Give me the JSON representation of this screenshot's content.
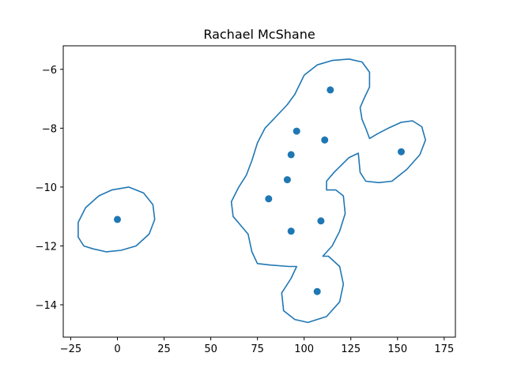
{
  "chart_data": {
    "type": "scatter",
    "title": "Rachael McShane",
    "xlabel": "",
    "ylabel": "",
    "xlim": [
      -29,
      181
    ],
    "ylim": [
      -15.1,
      -5.2
    ],
    "xticks": [
      -25,
      0,
      25,
      50,
      75,
      100,
      125,
      150,
      175
    ],
    "yticks": [
      -14,
      -12,
      -10,
      -8,
      -6
    ],
    "grid": false,
    "color": "#1f77b4",
    "points": [
      {
        "x": 0.0,
        "y": -11.1
      },
      {
        "x": 114.0,
        "y": -6.7
      },
      {
        "x": 96.0,
        "y": -8.1
      },
      {
        "x": 111.0,
        "y": -8.4
      },
      {
        "x": 93.0,
        "y": -8.9
      },
      {
        "x": 152.0,
        "y": -8.8
      },
      {
        "x": 91.0,
        "y": -9.75
      },
      {
        "x": 81.0,
        "y": -10.4
      },
      {
        "x": 109.0,
        "y": -11.15
      },
      {
        "x": 93.0,
        "y": -11.5
      },
      {
        "x": 107.0,
        "y": -13.55
      }
    ],
    "contours": [
      [
        [
          -21,
          -11.7
        ],
        [
          -21,
          -11.2
        ],
        [
          -17,
          -10.7
        ],
        [
          -10,
          -10.3
        ],
        [
          -3,
          -10.1
        ],
        [
          6,
          -10.0
        ],
        [
          14,
          -10.2
        ],
        [
          19,
          -10.6
        ],
        [
          20,
          -11.1
        ],
        [
          17,
          -11.6
        ],
        [
          10,
          -12.0
        ],
        [
          2,
          -12.15
        ],
        [
          -6,
          -12.2
        ],
        [
          -13,
          -12.1
        ],
        [
          -18,
          -12.0
        ],
        [
          -21,
          -11.7
        ]
      ],
      [
        [
          70,
          -11.6
        ],
        [
          72,
          -12.2
        ],
        [
          75,
          -12.6
        ],
        [
          82,
          -12.65
        ],
        [
          92,
          -12.7
        ],
        [
          96,
          -12.7
        ],
        [
          93,
          -13.1
        ],
        [
          88,
          -13.6
        ],
        [
          89,
          -14.2
        ],
        [
          95,
          -14.5
        ],
        [
          102,
          -14.6
        ],
        [
          112,
          -14.4
        ],
        [
          119,
          -13.9
        ],
        [
          121,
          -13.3
        ],
        [
          119,
          -12.7
        ],
        [
          113,
          -12.35
        ],
        [
          110,
          -12.35
        ],
        [
          115,
          -12.0
        ],
        [
          119,
          -11.5
        ],
        [
          122,
          -10.9
        ],
        [
          121,
          -10.3
        ],
        [
          117,
          -10.1
        ],
        [
          112,
          -10.1
        ],
        [
          112,
          -9.8
        ],
        [
          116,
          -9.5
        ],
        [
          124,
          -9.0
        ],
        [
          129,
          -8.85
        ],
        [
          130,
          -9.5
        ],
        [
          133,
          -9.8
        ],
        [
          140,
          -9.85
        ],
        [
          147,
          -9.8
        ],
        [
          155,
          -9.4
        ],
        [
          162,
          -8.9
        ],
        [
          165,
          -8.4
        ],
        [
          163,
          -7.95
        ],
        [
          158,
          -7.75
        ],
        [
          152,
          -7.8
        ],
        [
          145,
          -8.0
        ],
        [
          139,
          -8.2
        ],
        [
          135,
          -8.35
        ],
        [
          133,
          -8.0
        ],
        [
          131,
          -7.7
        ],
        [
          130,
          -7.3
        ],
        [
          132,
          -7.0
        ],
        [
          135,
          -6.6
        ],
        [
          135,
          -6.1
        ],
        [
          131,
          -5.75
        ],
        [
          124,
          -5.65
        ],
        [
          115,
          -5.7
        ],
        [
          107,
          -5.85
        ],
        [
          100,
          -6.2
        ],
        [
          95,
          -6.85
        ],
        [
          91,
          -7.2
        ],
        [
          85,
          -7.6
        ],
        [
          79,
          -8.0
        ],
        [
          75,
          -8.5
        ],
        [
          72,
          -9.1
        ],
        [
          69,
          -9.6
        ],
        [
          65,
          -10.0
        ],
        [
          61,
          -10.5
        ],
        [
          62,
          -11.0
        ],
        [
          66,
          -11.3
        ],
        [
          70,
          -11.6
        ]
      ]
    ]
  }
}
